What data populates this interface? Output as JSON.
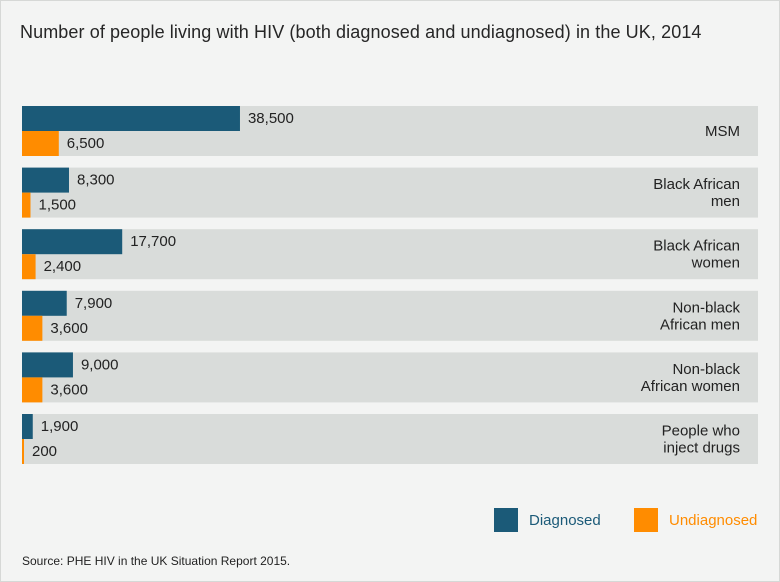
{
  "title": "Number of people living with HIV (both diagnosed and undiagnosed) in the UK, 2014",
  "source": "Source: PHE HIV in the UK Situation Report 2015.",
  "colors": {
    "diagnosed": "#1b5a78",
    "undiagnosed": "#ff8c00",
    "row_background": "#d9dcda",
    "legend_diagnosed_text": "#1b5a78",
    "legend_undiagnosed_text": "#ff8c00"
  },
  "chart_data": {
    "type": "bar",
    "orientation": "horizontal",
    "title": "Number of people living with HIV (both diagnosed and undiagnosed) in the UK, 2014",
    "categories": [
      [
        "MSM"
      ],
      [
        "Black African",
        "men"
      ],
      [
        "Black African",
        "women"
      ],
      [
        "Non-black",
        "African men"
      ],
      [
        "Non-black",
        "African women"
      ],
      [
        "People who",
        "inject drugs"
      ]
    ],
    "series": [
      {
        "name": "Diagnosed",
        "values": [
          38500,
          8300,
          17700,
          7900,
          9000,
          1900
        ],
        "labels": [
          "38,500",
          "8,300",
          "17,700",
          "7,900",
          "9,000",
          "1,900"
        ]
      },
      {
        "name": "Undiagnosed",
        "values": [
          6500,
          1500,
          2400,
          3600,
          3600,
          200
        ],
        "labels": [
          "6,500",
          "1,500",
          "2,400",
          "3,600",
          "3,600",
          "200"
        ]
      }
    ],
    "xlim": [
      0,
      130000
    ],
    "grid": false,
    "legend_position": "bottom-right"
  }
}
